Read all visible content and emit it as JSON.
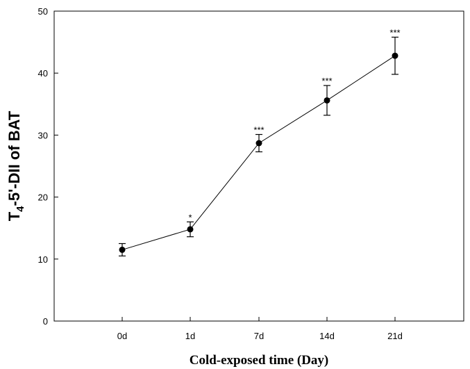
{
  "chart_data": {
    "type": "line",
    "title": "",
    "xlabel": "Cold-exposed time (Day)",
    "ylabel_main": "T",
    "ylabel_sub": "4",
    "ylabel_rest": "-5'-DII of BAT",
    "categories": [
      "0d",
      "1d",
      "7d",
      "14d",
      "21d"
    ],
    "values": [
      11.5,
      14.8,
      28.7,
      35.6,
      42.8
    ],
    "errors": [
      1.0,
      1.2,
      1.4,
      2.4,
      3.0
    ],
    "significance": [
      "",
      "*",
      "***",
      "***",
      "***"
    ],
    "ylim": [
      0,
      50
    ],
    "yticks": [
      "0",
      "10",
      "20",
      "30",
      "40",
      "50"
    ],
    "colors": {
      "line": "#000000",
      "marker": "#000000"
    }
  }
}
